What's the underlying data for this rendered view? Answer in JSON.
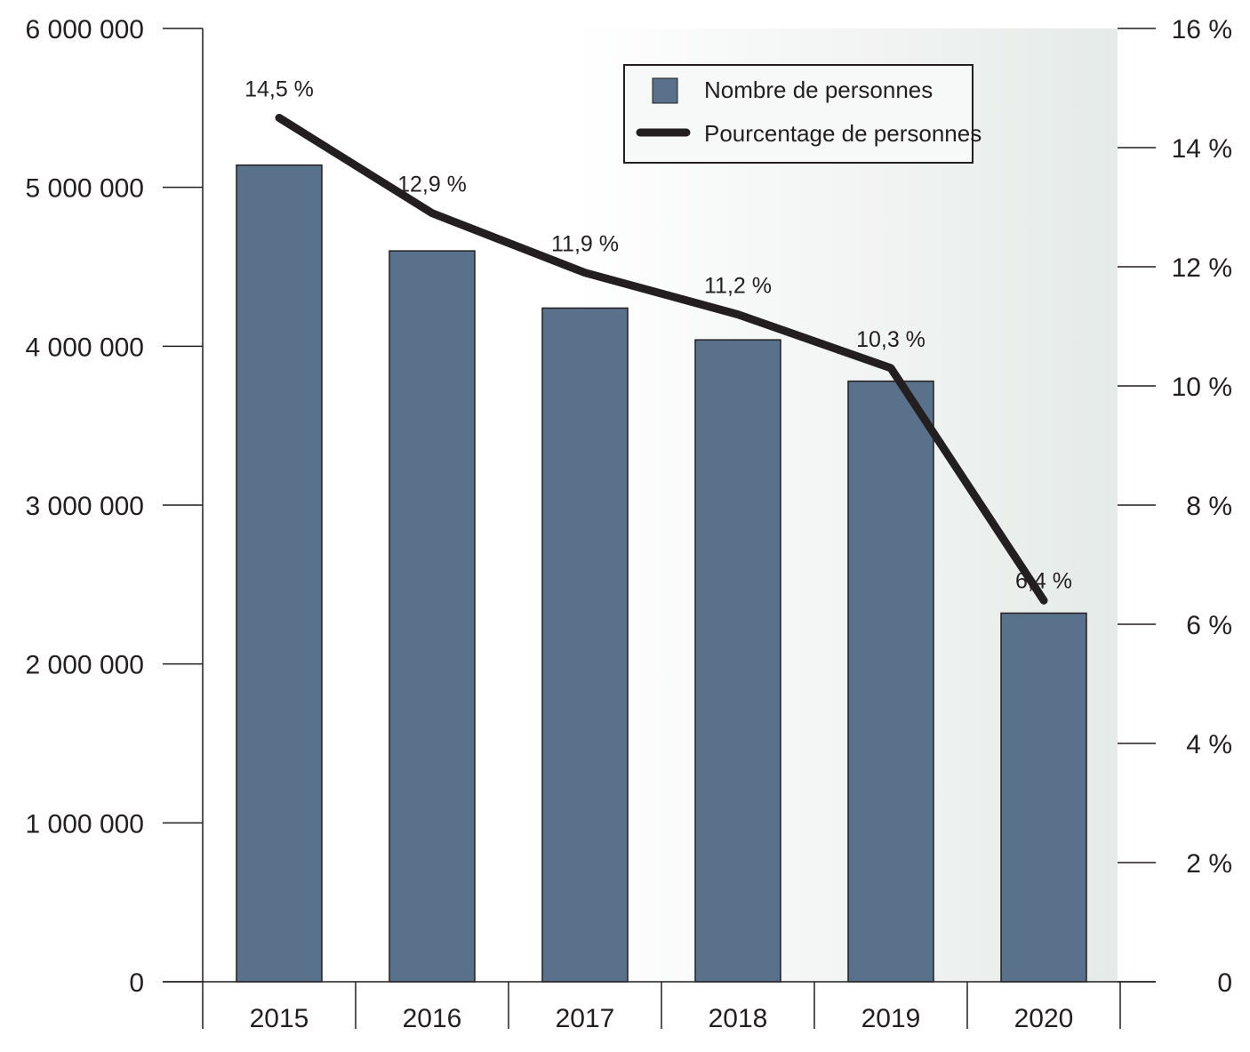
{
  "chart_data": {
    "type": "bar+line",
    "categories": [
      "2015",
      "2016",
      "2017",
      "2018",
      "2019",
      "2020"
    ],
    "series": [
      {
        "name": "Nombre de personnes",
        "type": "bar",
        "axis": "left",
        "values": [
          5140000,
          4600000,
          4240000,
          4040000,
          3780000,
          2320000
        ]
      },
      {
        "name": "Pourcentage de personnes",
        "type": "line",
        "axis": "right",
        "values": [
          14.5,
          12.9,
          11.9,
          11.2,
          10.3,
          6.4
        ],
        "labels": [
          "14,5 %",
          "12,9 %",
          "11,9 %",
          "11,2 %",
          "10,3 %",
          "6,4 %"
        ]
      }
    ],
    "left_axis": {
      "ylim": [
        0,
        6000000
      ],
      "ticks": [
        "0",
        "1 000 000",
        "2 000 000",
        "3 000 000",
        "4 000 000",
        "5 000 000",
        "6 000 000"
      ]
    },
    "right_axis": {
      "ylim": [
        0,
        16
      ],
      "ticks": [
        "0",
        "2 %",
        "4 %",
        "6 %",
        "8 %",
        "10 %",
        "12 %",
        "14 %",
        "16 %"
      ]
    },
    "legend": {
      "placement": "top-right",
      "entries": [
        "Nombre de personnes",
        "Pourcentage de personnes"
      ]
    },
    "colors": {
      "bar": "#5a718c",
      "line": "#231f20",
      "bg_end": "#e5ebe8"
    },
    "grid": false
  }
}
